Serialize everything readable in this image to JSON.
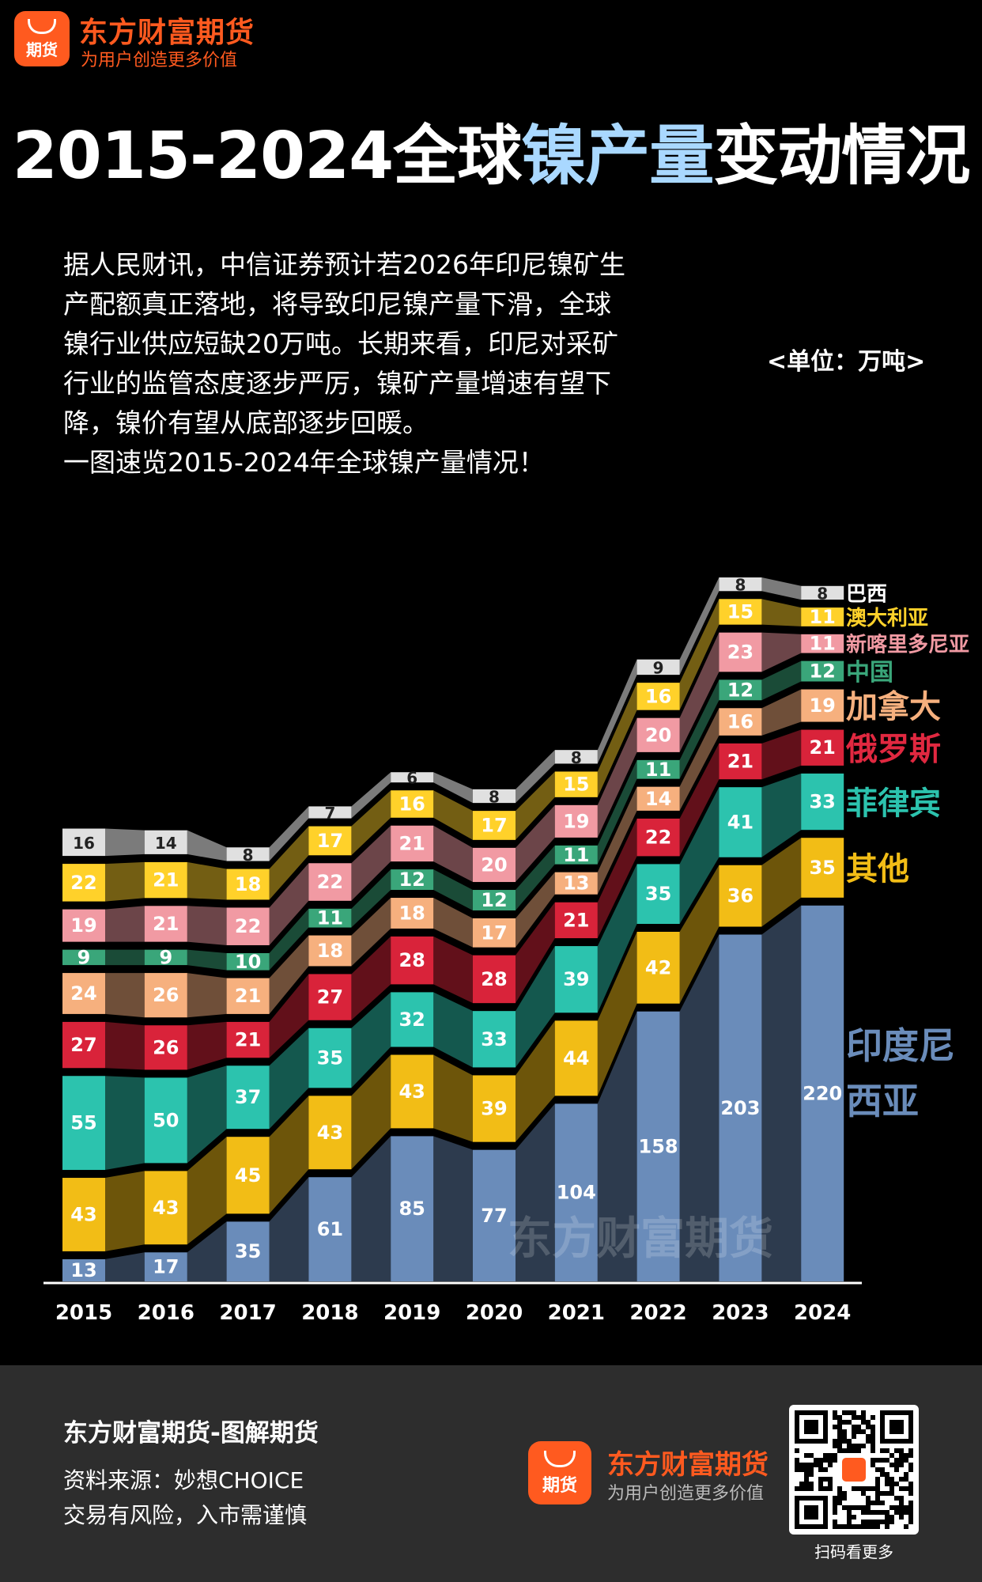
{
  "header": {
    "logo_text": "期货",
    "brand_name": "东方财富期货",
    "slogan": "为用户创造更多价值"
  },
  "title": {
    "part1": "2015-2024全球",
    "part2": "镍产量",
    "part3": "变动情况"
  },
  "intro": {
    "line1": "据人民财讯，中信证券预计若2026年印尼镍矿生",
    "line2": "产配额真正落地，将导致印尼镍产量下滑，全球",
    "line3": "镍行业供应短缺20万吨。长期来看，印尼对采矿",
    "line4": "行业的监管态度逐步严厉，镍矿产量增速有望下",
    "line5": "降，镍价有望从底部逐步回暖。",
    "line6": "一图速览2015-2024年全球镍产量情况！"
  },
  "unit_label": "<单位：万吨>",
  "chart_data": {
    "type": "bar",
    "stacked": true,
    "title": "2015-2024全球镍产量变动情况",
    "ylabel": "万吨",
    "categories": [
      "2015",
      "2016",
      "2017",
      "2018",
      "2019",
      "2020",
      "2021",
      "2022",
      "2023",
      "2024"
    ],
    "series": [
      {
        "name": "印度尼西亚",
        "values": [
          13,
          17,
          35,
          61,
          85,
          77,
          104,
          158,
          203,
          220
        ],
        "color": "#6a8cba"
      },
      {
        "name": "其他",
        "values": [
          43,
          43,
          45,
          43,
          43,
          39,
          44,
          42,
          36,
          35
        ],
        "color": "#f2bd16"
      },
      {
        "name": "菲律宾",
        "values": [
          55,
          50,
          37,
          35,
          32,
          33,
          39,
          35,
          41,
          33
        ],
        "color": "#2cc3ae"
      },
      {
        "name": "俄罗斯",
        "values": [
          27,
          26,
          21,
          27,
          28,
          28,
          21,
          22,
          21,
          21
        ],
        "color": "#d9233a"
      },
      {
        "name": "加拿大",
        "values": [
          24,
          26,
          21,
          18,
          18,
          17,
          13,
          14,
          16,
          19
        ],
        "color": "#f6b07e"
      },
      {
        "name": "中国",
        "values": [
          9,
          9,
          10,
          11,
          12,
          12,
          11,
          11,
          12,
          12
        ],
        "color": "#3aa67a"
      },
      {
        "name": "新喀里多尼亚",
        "values": [
          19,
          21,
          22,
          22,
          21,
          20,
          19,
          20,
          23,
          11
        ],
        "color": "#f19aa3"
      },
      {
        "name": "澳大利亚",
        "values": [
          22,
          21,
          18,
          17,
          16,
          17,
          15,
          16,
          15,
          11
        ],
        "color": "#ffd12a"
      },
      {
        "name": "巴西",
        "values": [
          16,
          14,
          8,
          7,
          6,
          8,
          8,
          9,
          8,
          8
        ],
        "color": "#e0e0e0"
      }
    ],
    "legend_position": "right",
    "watermark": "东方财富期货"
  },
  "legend_colors": {
    "印度尼西亚": "#6a8cba",
    "其他": "#f2bd16",
    "菲律宾": "#2cc3ae",
    "俄罗斯": "#e02840",
    "加拿大": "#f6b07e",
    "中国": "#3aa67a",
    "新喀里多尼亚": "#f19aa3",
    "澳大利亚": "#ffd12a",
    "巴西": "#ffffff"
  },
  "footer": {
    "title": "东方财富期货-图解期货",
    "source": "资料来源：妙想CHOICE",
    "risk": "交易有风险，入市需谨慎",
    "logo_text": "期货",
    "brand_name": "东方财富期货",
    "slogan": "为用户创造更多价值",
    "qr_caption": "扫码看更多"
  }
}
